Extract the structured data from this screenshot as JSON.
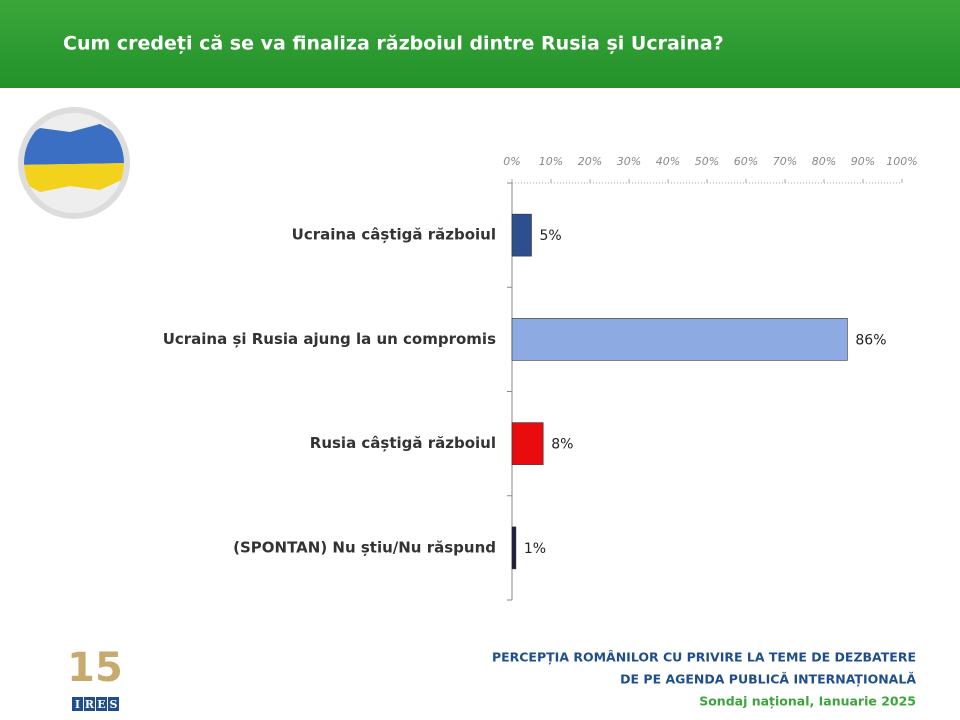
{
  "chart_data": {
    "type": "bar",
    "orientation": "horizontal",
    "title": "Cum credeți că se va finaliza războiul dintre Rusia și Ucraina?",
    "categories": [
      "Ucraina câștigă războiul",
      "Ucraina și Rusia ajung la un compromis",
      "Rusia câștigă războiul",
      "(SPONTAN) Nu știu/Nu răspund"
    ],
    "values": [
      5,
      86,
      8,
      1
    ],
    "value_labels": [
      "5%",
      "86%",
      "8%",
      "1%"
    ],
    "colors": [
      "#2d4f8e",
      "#8eaae2",
      "#e80c0c",
      "#1c1c3c"
    ],
    "xlim": [
      0,
      100
    ],
    "xticks": [
      {
        "value": 0,
        "label": "0%"
      },
      {
        "value": 10,
        "label": "10%"
      },
      {
        "value": 20,
        "label": "20%"
      },
      {
        "value": 30,
        "label": "30%"
      },
      {
        "value": 40,
        "label": "40%"
      },
      {
        "value": 50,
        "label": "50%"
      },
      {
        "value": 60,
        "label": "60%"
      },
      {
        "value": 70,
        "label": "70%"
      },
      {
        "value": 80,
        "label": "80%"
      },
      {
        "value": 90,
        "label": "90%"
      },
      {
        "value": 100,
        "label": "100%"
      }
    ]
  },
  "footer": {
    "line1": "PERCEPȚIA ROMÂNILOR CU PRIVIRE LA TEME DE DEZBATERE",
    "line2": "DE PE AGENDA PUBLICĂ INTERNAȚIONALĂ",
    "line3": "Sondaj național, Ianuarie 2025"
  },
  "logo": {
    "number": "15",
    "letters": [
      "I",
      "R",
      "E",
      "S"
    ]
  }
}
